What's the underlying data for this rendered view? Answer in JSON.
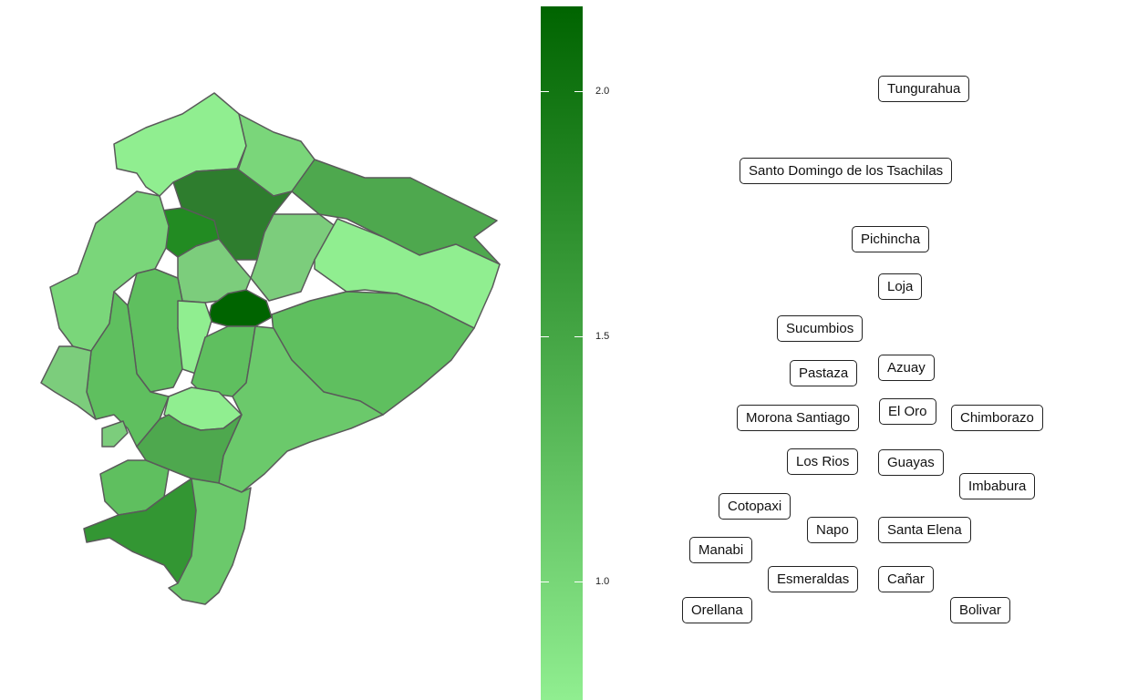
{
  "legend": {
    "colors": [
      "#006400",
      "#90ee90"
    ],
    "ticks": [
      "2.0",
      "1.5",
      "1.0"
    ]
  },
  "map": {
    "region_fills": [
      "#90ee90",
      "#7ad67a",
      "#6bc96b",
      "#228b22",
      "#2e7d2e",
      "#5fbf5f",
      "#4ea84e",
      "#3f9a3f",
      "#006400",
      "#339633",
      "#7ccd7c"
    ]
  },
  "labels": [
    {
      "name": "Tungurahua"
    },
    {
      "name": "Santo Domingo de los Tsachilas"
    },
    {
      "name": "Pichincha"
    },
    {
      "name": "Loja"
    },
    {
      "name": "Sucumbios"
    },
    {
      "name": "Azuay"
    },
    {
      "name": "Pastaza"
    },
    {
      "name": "El Oro"
    },
    {
      "name": "Morona Santiago"
    },
    {
      "name": "Chimborazo"
    },
    {
      "name": "Los Rios"
    },
    {
      "name": "Guayas"
    },
    {
      "name": "Imbabura"
    },
    {
      "name": "Cotopaxi"
    },
    {
      "name": "Napo"
    },
    {
      "name": "Santa Elena"
    },
    {
      "name": "Manabi"
    },
    {
      "name": "Esmeraldas"
    },
    {
      "name": "Cañar"
    },
    {
      "name": "Orellana"
    },
    {
      "name": "Bolivar"
    }
  ]
}
